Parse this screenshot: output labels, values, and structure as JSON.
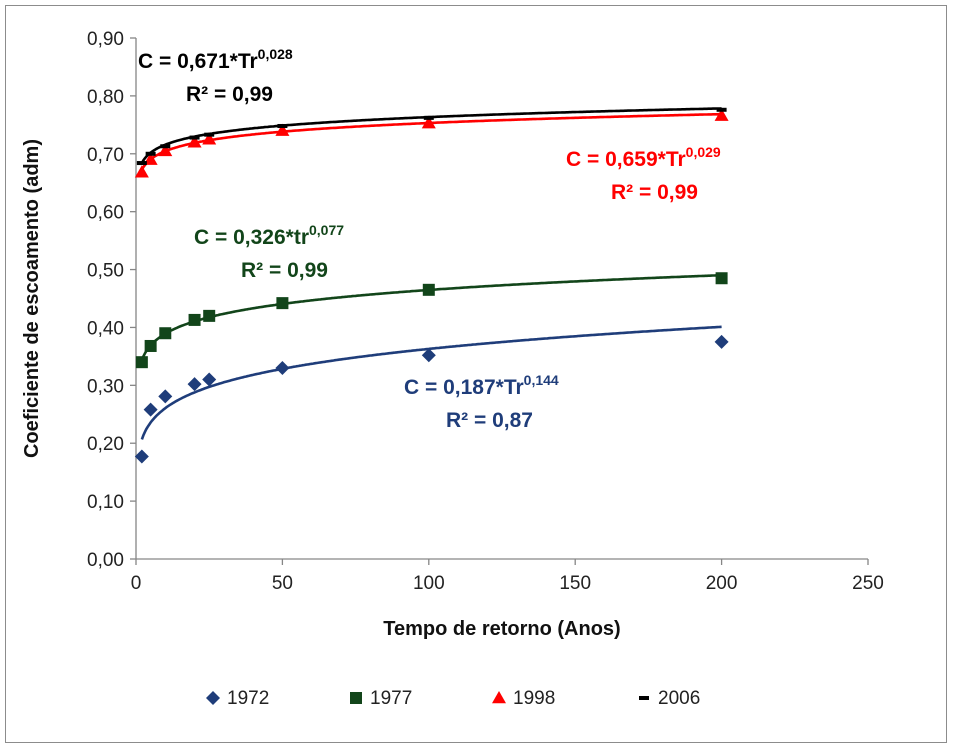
{
  "chart_data": {
    "type": "scatter",
    "xlabel": "Tempo de retorno (Anos)",
    "ylabel": "Coeficiente de escoamento (adm)",
    "xlim": [
      0,
      250
    ],
    "ylim": [
      0,
      0.9
    ],
    "x_ticks": [
      "0",
      "50",
      "100",
      "150",
      "200",
      "250"
    ],
    "y_ticks": [
      "0,00",
      "0,10",
      "0,20",
      "0,30",
      "0,40",
      "0,50",
      "0,60",
      "0,70",
      "0,80",
      "0,90"
    ],
    "grid": false,
    "legend_position": "bottom",
    "series": [
      {
        "name": "1972",
        "color": "#1f3d7a",
        "marker": "diamond",
        "x": [
          2,
          5,
          10,
          20,
          25,
          50,
          100,
          200
        ],
        "y": [
          0.177,
          0.258,
          0.281,
          0.302,
          0.31,
          0.33,
          0.352,
          0.375
        ],
        "trend": {
          "a": 0.187,
          "b": 0.144
        },
        "equation": {
          "prefix": "C = 0,187*Tr",
          "exp": "0,144",
          "r2": "R² = 0,87"
        }
      },
      {
        "name": "1977",
        "color": "#12451a",
        "marker": "square",
        "x": [
          2,
          5,
          10,
          20,
          25,
          50,
          100,
          200
        ],
        "y": [
          0.34,
          0.368,
          0.39,
          0.413,
          0.42,
          0.442,
          0.465,
          0.485
        ],
        "trend": {
          "a": 0.326,
          "b": 0.077
        },
        "equation": {
          "prefix": "C = 0,326*tr",
          "exp": "0,077",
          "r2": "R² = 0,99"
        }
      },
      {
        "name": "1998",
        "color": "#ff0000",
        "marker": "triangle",
        "x": [
          2,
          5,
          10,
          20,
          25,
          50,
          100,
          200
        ],
        "y": [
          0.668,
          0.69,
          0.705,
          0.72,
          0.725,
          0.74,
          0.753,
          0.766
        ],
        "trend": {
          "a": 0.659,
          "b": 0.029
        },
        "equation": {
          "prefix": "C = 0,659*Tr",
          "exp": "0,029",
          "r2": "R² = 0,99"
        }
      },
      {
        "name": "2006",
        "color": "#000000",
        "marker": "dash",
        "x": [
          2,
          5,
          10,
          20,
          25,
          50,
          100,
          200
        ],
        "y": [
          0.684,
          0.7,
          0.713,
          0.728,
          0.733,
          0.748,
          0.762,
          0.776
        ],
        "trend": {
          "a": 0.671,
          "b": 0.028
        },
        "equation": {
          "prefix": "C = 0,671*Tr",
          "exp": "0,028",
          "r2": "R² = 0,99"
        }
      }
    ]
  }
}
